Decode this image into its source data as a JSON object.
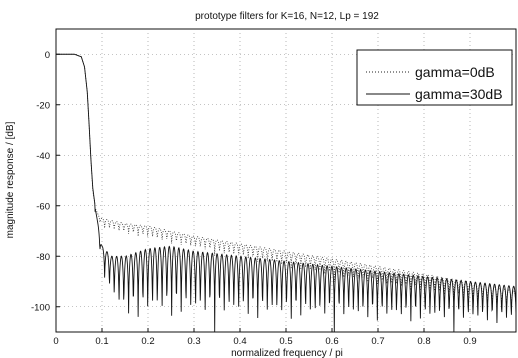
{
  "chart_data": {
    "type": "line",
    "title": "prototype filters for K=16, N=12, Lp = 192",
    "xlabel": "normalized frequency / pi",
    "ylabel": "magnitude response / [dB]",
    "xlim": [
      0,
      1
    ],
    "ylim": [
      -110,
      10
    ],
    "xticks": [
      0,
      0.1,
      0.2,
      0.3,
      0.4,
      0.5,
      0.6,
      0.7,
      0.8,
      0.9
    ],
    "yticks": [
      0,
      -20,
      -40,
      -60,
      -80,
      -100
    ],
    "xtick_labels": [
      "0",
      "0.1",
      "0.2",
      "0.3",
      "0.4",
      "0.5",
      "0.6",
      "0.7",
      "0.8",
      "0.9"
    ],
    "ytick_labels": [
      "0",
      "-20",
      "-40",
      "-60",
      "-80",
      "-100"
    ],
    "grid": true,
    "legend_position": "top-right",
    "series": [
      {
        "name": "gamma=0dB",
        "style": "dotted",
        "x": [
          0,
          0.04,
          0.055,
          0.062,
          0.068,
          0.072,
          0.076,
          0.08,
          0.085,
          0.09,
          0.1,
          0.15,
          0.2,
          0.25,
          0.3,
          0.4,
          0.5,
          0.6,
          0.7,
          0.8,
          0.9,
          1.0
        ],
        "values": [
          0,
          0,
          -1,
          -5,
          -15,
          -28,
          -42,
          -54,
          -60,
          -63,
          -65,
          -67,
          -68,
          -70,
          -72,
          -75,
          -78,
          -81,
          -84,
          -87,
          -90,
          -94
        ],
        "floor_values": [
          0,
          0,
          -1,
          -5,
          -15,
          -28,
          -42,
          -54,
          -62,
          -66,
          -70,
          -72,
          -74,
          -76,
          -78,
          -82,
          -86,
          -90,
          -93,
          -96,
          -100,
          -103
        ]
      },
      {
        "name": "gamma=30dB",
        "style": "solid",
        "x": [
          0,
          0.04,
          0.055,
          0.062,
          0.068,
          0.072,
          0.076,
          0.08,
          0.085,
          0.09,
          0.1,
          0.12,
          0.15,
          0.2,
          0.25,
          0.3,
          0.4,
          0.5,
          0.6,
          0.7,
          0.8,
          0.9,
          1.0
        ],
        "values": [
          0,
          0,
          -1,
          -5,
          -15,
          -28,
          -42,
          -53,
          -60,
          -66,
          -76,
          -80,
          -80,
          -77,
          -76,
          -78,
          -80,
          -82,
          -84,
          -86,
          -88,
          -90,
          -92
        ],
        "floor_values": [
          0,
          0,
          -1,
          -5,
          -15,
          -28,
          -42,
          -53,
          -62,
          -70,
          -90,
          -100,
          -110,
          -110,
          -110,
          -110,
          -110,
          -110,
          -110,
          -110,
          -110,
          -110,
          -110
        ]
      }
    ]
  }
}
